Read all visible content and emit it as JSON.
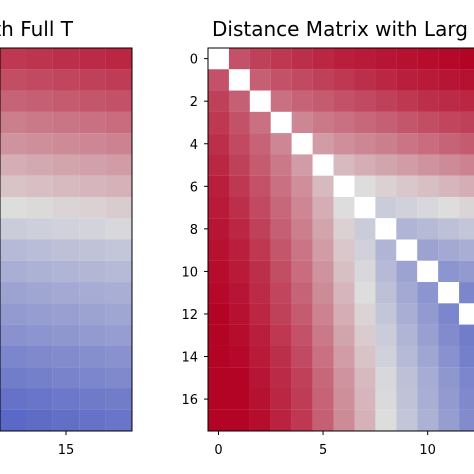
{
  "figure": {
    "left_chart_title": "th Full T",
    "right_chart_title": "Distance Matrix with Larg"
  },
  "chart_data": [
    {
      "type": "heatmap",
      "title": "th Full T",
      "colormap": "coolwarm",
      "grid": false,
      "colorscale_colors": [
        "#3b4cc0",
        "#dddddd",
        "#b40426"
      ],
      "diagonal_color": "#ffffff",
      "visible_columns": [
        13,
        14,
        15,
        16,
        17
      ],
      "visible_rows": [
        0,
        1,
        2,
        3,
        4,
        5,
        6,
        7,
        8,
        9,
        10,
        11,
        12,
        13,
        14,
        15,
        16,
        17
      ],
      "x_ticks": [
        15
      ],
      "y_ticks": [],
      "value_rule": "row-major weighted distance; upper rows are red and lower rows are blue, with diagonal cells shown as white",
      "values": [
        [
          0.88,
          0.89,
          0.9,
          0.91,
          0.92
        ],
        [
          0.83,
          0.84,
          0.85,
          0.86,
          0.87
        ],
        [
          0.78,
          0.79,
          0.8,
          0.81,
          0.82
        ],
        [
          0.72,
          0.73,
          0.74,
          0.75,
          0.76
        ],
        [
          0.67,
          0.68,
          0.69,
          0.7,
          0.71
        ],
        [
          0.61,
          0.62,
          0.63,
          0.64,
          0.65
        ],
        [
          0.56,
          0.57,
          0.58,
          0.59,
          0.6
        ],
        [
          0.5,
          0.51,
          0.52,
          0.53,
          0.54
        ],
        [
          0.44,
          0.45,
          0.46,
          0.47,
          0.48
        ],
        [
          0.38,
          0.39,
          0.4,
          0.41,
          0.42
        ],
        [
          0.34,
          0.35,
          0.36,
          0.37,
          0.38
        ],
        [
          0.3,
          0.31,
          0.32,
          0.33,
          0.34
        ],
        [
          0.27,
          0.28,
          0.29,
          0.3,
          0.31
        ],
        [
          0.24,
          0.25,
          0.26,
          0.27,
          0.28
        ],
        [
          0.2,
          0.21,
          0.22,
          0.23,
          0.24
        ],
        [
          0.17,
          0.18,
          0.19,
          0.2,
          0.21
        ],
        [
          0.13,
          0.14,
          0.15,
          0.16,
          0.17
        ],
        [
          0.1,
          0.11,
          0.12,
          0.13,
          0.14
        ]
      ]
    },
    {
      "type": "heatmap",
      "title": "Distance Matrix with Larg",
      "colormap": "coolwarm",
      "grid": false,
      "colorscale_colors": [
        "#3b4cc0",
        "#dddddd",
        "#b40426"
      ],
      "diagonal_color": "#ffffff",
      "visible_columns": [
        0,
        1,
        2,
        3,
        4,
        5,
        6,
        7,
        8,
        9,
        10,
        11,
        12
      ],
      "visible_rows": [
        0,
        1,
        2,
        3,
        4,
        5,
        6,
        7,
        8,
        9,
        10,
        11,
        12,
        13,
        14,
        15,
        16,
        17
      ],
      "x_ticks": [
        0,
        5,
        10
      ],
      "y_ticks": [
        0,
        2,
        4,
        6,
        8,
        10,
        12,
        14,
        16
      ],
      "x_range": [
        -0.5,
        12.5
      ],
      "y_range": [
        17.5,
        -0.5
      ],
      "value_rule": "distance increases away from the diagonal; cells near the diagonal approach white and blue, cells far from it approach red",
      "values": [
        [
          0.0,
          0.82,
          0.86,
          0.88,
          0.9,
          0.92,
          0.94,
          0.95,
          0.96,
          0.97,
          0.98,
          0.99,
          1.0
        ],
        [
          0.82,
          0.0,
          0.79,
          0.82,
          0.84,
          0.86,
          0.88,
          0.9,
          0.92,
          0.94,
          0.95,
          0.96,
          0.97
        ],
        [
          0.86,
          0.79,
          0.0,
          0.75,
          0.78,
          0.8,
          0.82,
          0.84,
          0.86,
          0.88,
          0.9,
          0.91,
          0.92
        ],
        [
          0.88,
          0.82,
          0.75,
          0.0,
          0.7,
          0.73,
          0.75,
          0.77,
          0.79,
          0.81,
          0.83,
          0.85,
          0.86
        ],
        [
          0.9,
          0.84,
          0.78,
          0.7,
          0.0,
          0.65,
          0.68,
          0.7,
          0.72,
          0.74,
          0.76,
          0.78,
          0.8
        ],
        [
          0.92,
          0.86,
          0.8,
          0.73,
          0.65,
          0.0,
          0.58,
          0.61,
          0.63,
          0.65,
          0.67,
          0.69,
          0.71
        ],
        [
          0.94,
          0.88,
          0.82,
          0.75,
          0.68,
          0.58,
          0.0,
          0.5,
          0.53,
          0.55,
          0.57,
          0.59,
          0.61
        ],
        [
          0.95,
          0.9,
          0.84,
          0.77,
          0.7,
          0.61,
          0.5,
          0.0,
          0.44,
          0.46,
          0.48,
          0.5,
          0.52
        ],
        [
          0.96,
          0.92,
          0.86,
          0.79,
          0.72,
          0.63,
          0.53,
          0.44,
          0.0,
          0.36,
          0.38,
          0.4,
          0.42
        ],
        [
          0.97,
          0.94,
          0.88,
          0.81,
          0.74,
          0.65,
          0.55,
          0.46,
          0.36,
          0.0,
          0.3,
          0.32,
          0.34
        ],
        [
          0.98,
          0.95,
          0.9,
          0.83,
          0.76,
          0.67,
          0.57,
          0.48,
          0.38,
          0.3,
          0.0,
          0.25,
          0.27
        ],
        [
          0.99,
          0.96,
          0.91,
          0.85,
          0.78,
          0.69,
          0.59,
          0.5,
          0.4,
          0.32,
          0.25,
          0.0,
          0.2
        ],
        [
          1.0,
          0.97,
          0.92,
          0.86,
          0.8,
          0.71,
          0.61,
          0.52,
          0.42,
          0.34,
          0.27,
          0.2,
          0.0
        ],
        [
          1.0,
          0.98,
          0.94,
          0.88,
          0.82,
          0.73,
          0.63,
          0.54,
          0.44,
          0.36,
          0.29,
          0.22,
          0.17
        ],
        [
          1.0,
          0.99,
          0.95,
          0.9,
          0.84,
          0.75,
          0.65,
          0.56,
          0.46,
          0.38,
          0.31,
          0.24,
          0.18
        ],
        [
          1.0,
          1.0,
          0.96,
          0.91,
          0.86,
          0.77,
          0.67,
          0.58,
          0.48,
          0.4,
          0.33,
          0.26,
          0.2
        ],
        [
          1.0,
          1.0,
          0.97,
          0.92,
          0.87,
          0.78,
          0.68,
          0.59,
          0.49,
          0.41,
          0.34,
          0.27,
          0.21
        ],
        [
          1.0,
          1.0,
          0.98,
          0.93,
          0.88,
          0.79,
          0.69,
          0.6,
          0.5,
          0.42,
          0.35,
          0.28,
          0.22
        ]
      ]
    }
  ]
}
